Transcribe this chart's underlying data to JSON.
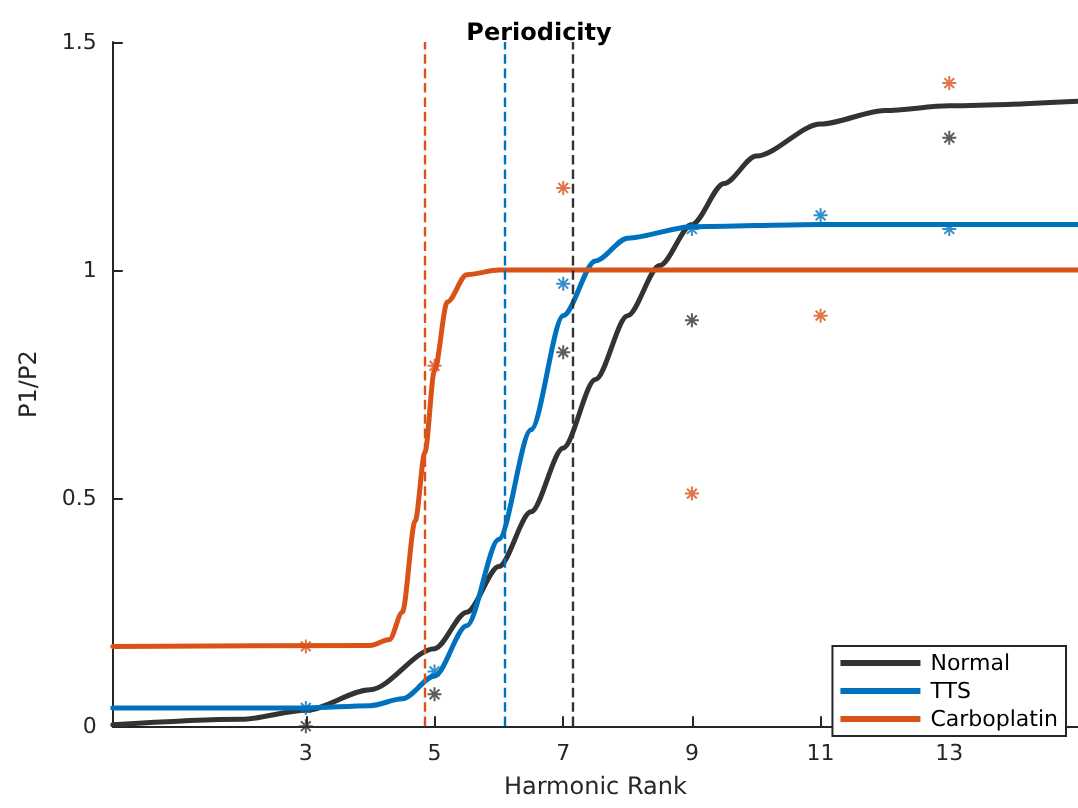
{
  "chart_data": {
    "type": "line",
    "title": "Periodicity",
    "xlabel": "Harmonic Rank",
    "ylabel": "P1/P2",
    "xlim": [
      0,
      15
    ],
    "xticks": [
      3,
      5,
      7,
      9,
      11,
      13
    ],
    "ylim": [
      0,
      1.5
    ],
    "yticks": [
      0,
      0.5,
      1,
      1.5
    ],
    "grid": false,
    "legend": "bottom right",
    "line_style": "solid",
    "series": [
      {
        "name": "Normal",
        "color": "#333333",
        "marker": "none",
        "x": [
          0,
          2,
          3,
          4,
          5,
          5.5,
          6,
          6.5,
          7,
          7.5,
          8,
          8.5,
          9,
          9.5,
          10,
          11,
          12,
          13,
          15
        ],
        "values": [
          0.003,
          0.015,
          0.035,
          0.08,
          0.17,
          0.25,
          0.35,
          0.47,
          0.61,
          0.76,
          0.9,
          1.01,
          1.1,
          1.19,
          1.25,
          1.32,
          1.35,
          1.36,
          1.37
        ]
      },
      {
        "name": "TTS",
        "color": "#0072bd",
        "marker": "none",
        "x": [
          0,
          3,
          4,
          4.5,
          5,
          5.5,
          6,
          6.5,
          7,
          7.5,
          8,
          9,
          11,
          15
        ],
        "values": [
          0.04,
          0.04,
          0.045,
          0.06,
          0.11,
          0.22,
          0.41,
          0.65,
          0.9,
          1.02,
          1.07,
          1.095,
          1.1,
          1.1
        ]
      },
      {
        "name": "Carboplatin",
        "color": "#d95319",
        "marker": "none",
        "x": [
          0,
          4,
          4.3,
          4.5,
          4.7,
          4.85,
          5,
          5.2,
          5.5,
          6,
          15
        ],
        "values": [
          0.175,
          0.177,
          0.19,
          0.25,
          0.45,
          0.6,
          0.78,
          0.93,
          0.99,
          1.0,
          1.0
        ]
      },
      {
        "type": "scatter",
        "color": "#333333",
        "marker": "cross",
        "x": [
          3,
          5,
          7,
          9,
          13
        ],
        "values": [
          0.0,
          0.07,
          0.82,
          0.89,
          1.29
        ]
      },
      {
        "type": "scatter",
        "color": "#0072bd",
        "marker": "cross",
        "x": [
          3,
          5,
          7,
          9,
          11,
          13
        ],
        "values": [
          0.04,
          0.12,
          0.97,
          1.09,
          1.12,
          1.09
        ]
      },
      {
        "type": "scatter",
        "color": "#d95319",
        "marker": "cross",
        "x": [
          3,
          5,
          7,
          9,
          11,
          13
        ],
        "values": [
          0.175,
          0.79,
          1.18,
          0.51,
          0.9,
          1.41
        ]
      }
    ],
    "ref_lines": [
      {
        "axis": "x",
        "value": 4.85,
        "color": "#d95319",
        "line_style": "dashed"
      },
      {
        "axis": "x",
        "value": 6.1,
        "color": "#0072bd",
        "line_style": "dashed"
      },
      {
        "axis": "x",
        "value": 7.15,
        "color": "#333333",
        "line_style": "dashed"
      }
    ]
  }
}
